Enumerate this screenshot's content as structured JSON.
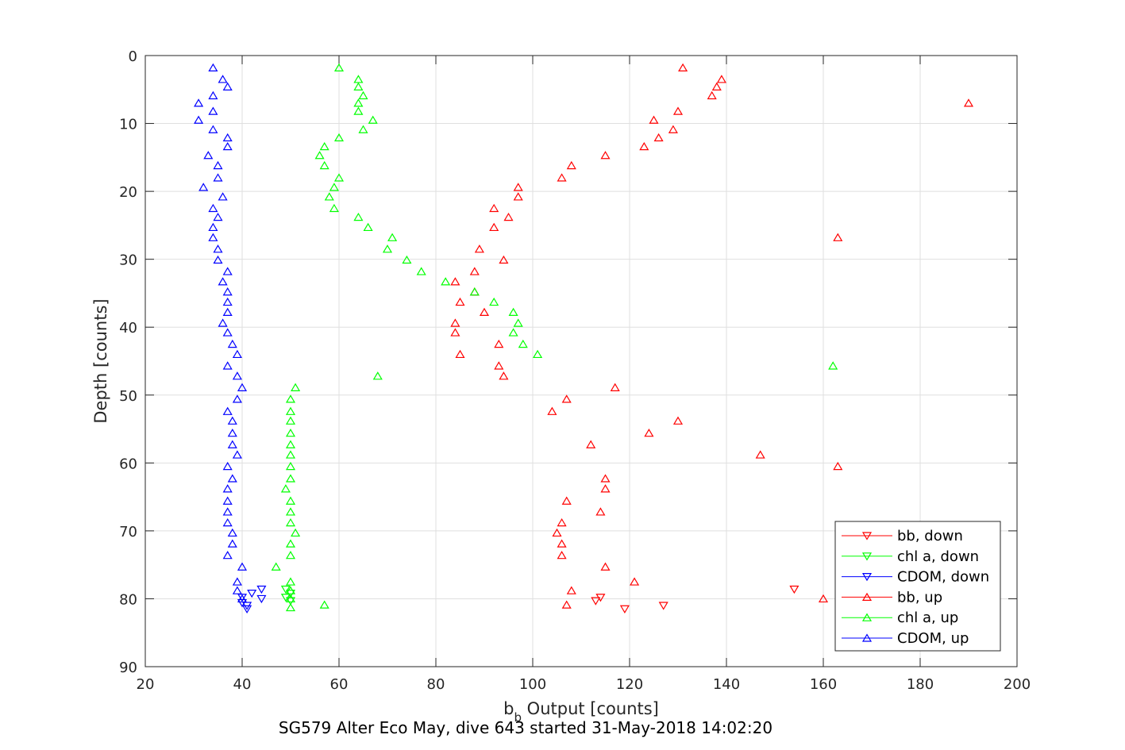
{
  "chart_data": {
    "type": "scatter",
    "xlabel_main": "b",
    "xlabel_sub": "b",
    "xlabel_rest": " Output [counts]",
    "ylabel": "Depth [counts]",
    "caption": "SG579 Alter Eco May, dive 643 started 31-May-2018 14:02:20",
    "xlim": [
      20,
      200
    ],
    "ylim": [
      0,
      90
    ],
    "y_reversed": true,
    "grid": true,
    "legend_position": "bottom-right",
    "x_ticks": [
      20,
      40,
      60,
      80,
      100,
      120,
      140,
      160,
      180,
      200
    ],
    "y_ticks": [
      0,
      10,
      20,
      30,
      40,
      50,
      60,
      70,
      80,
      90
    ],
    "series": [
      {
        "name": "bb, down",
        "color": "#ff0000",
        "marker": "triangle-down",
        "points": [
          [
            154,
            78.6
          ],
          [
            114,
            79.8
          ],
          [
            113,
            80.3
          ],
          [
            119,
            81.5
          ],
          [
            127,
            81
          ]
        ]
      },
      {
        "name": "chl a, down",
        "color": "#00ff00",
        "marker": "triangle-down",
        "points": [
          [
            49,
            78.6
          ],
          [
            50,
            79.2
          ],
          [
            49,
            79.8
          ],
          [
            50,
            80.3
          ]
        ]
      },
      {
        "name": "CDOM, down",
        "color": "#0000ff",
        "marker": "triangle-down",
        "points": [
          [
            44,
            78.6
          ],
          [
            42,
            79.2
          ],
          [
            40,
            79.8
          ],
          [
            44,
            80
          ],
          [
            40,
            80.6
          ],
          [
            41,
            81
          ],
          [
            41,
            81.5
          ]
        ]
      },
      {
        "name": "bb, up",
        "color": "#ff0000",
        "marker": "triangle-up",
        "points": [
          [
            131,
            1.8
          ],
          [
            139,
            3.5
          ],
          [
            138,
            4.6
          ],
          [
            137,
            5.9
          ],
          [
            190,
            7
          ],
          [
            130,
            8.2
          ],
          [
            125,
            9.5
          ],
          [
            129,
            10.9
          ],
          [
            126,
            12.1
          ],
          [
            123,
            13.4
          ],
          [
            115,
            14.7
          ],
          [
            108,
            16.2
          ],
          [
            106,
            18
          ],
          [
            97,
            19.4
          ],
          [
            97,
            20.8
          ],
          [
            92,
            22.5
          ],
          [
            95,
            23.8
          ],
          [
            92,
            25.3
          ],
          [
            163,
            26.8
          ],
          [
            89,
            28.5
          ],
          [
            94,
            30.1
          ],
          [
            88,
            31.8
          ],
          [
            84,
            33.3
          ],
          [
            88,
            34.8
          ],
          [
            85,
            36.3
          ],
          [
            90,
            37.8
          ],
          [
            84,
            39.4
          ],
          [
            84,
            40.8
          ],
          [
            93,
            42.5
          ],
          [
            85,
            44
          ],
          [
            93,
            45.7
          ],
          [
            94,
            47.2
          ],
          [
            117,
            48.9
          ],
          [
            107,
            50.6
          ],
          [
            104,
            52.4
          ],
          [
            130,
            53.8
          ],
          [
            124,
            55.6
          ],
          [
            112,
            57.3
          ],
          [
            147,
            58.8
          ],
          [
            163,
            60.5
          ],
          [
            115,
            62.3
          ],
          [
            115,
            63.8
          ],
          [
            107,
            65.6
          ],
          [
            114,
            67.2
          ],
          [
            106,
            68.8
          ],
          [
            105,
            70.3
          ],
          [
            106,
            71.9
          ],
          [
            106,
            73.6
          ],
          [
            115,
            75.3
          ],
          [
            121,
            77.5
          ],
          [
            108,
            78.8
          ],
          [
            160,
            80
          ],
          [
            107,
            80.9
          ]
        ]
      },
      {
        "name": "chl a, up",
        "color": "#00ff00",
        "marker": "triangle-up",
        "points": [
          [
            60,
            1.8
          ],
          [
            64,
            3.5
          ],
          [
            64,
            4.6
          ],
          [
            65,
            5.9
          ],
          [
            64,
            7
          ],
          [
            64,
            8.2
          ],
          [
            67,
            9.5
          ],
          [
            65,
            10.9
          ],
          [
            60,
            12.1
          ],
          [
            57,
            13.4
          ],
          [
            56,
            14.7
          ],
          [
            57,
            16.2
          ],
          [
            60,
            18
          ],
          [
            59,
            19.4
          ],
          [
            58,
            20.8
          ],
          [
            59,
            22.5
          ],
          [
            64,
            23.8
          ],
          [
            66,
            25.3
          ],
          [
            71,
            26.8
          ],
          [
            70,
            28.5
          ],
          [
            74,
            30.1
          ],
          [
            77,
            31.8
          ],
          [
            82,
            33.3
          ],
          [
            88,
            34.8
          ],
          [
            92,
            36.3
          ],
          [
            96,
            37.8
          ],
          [
            97,
            39.4
          ],
          [
            96,
            40.8
          ],
          [
            98,
            42.5
          ],
          [
            101,
            44
          ],
          [
            162,
            45.7
          ],
          [
            68,
            47.2
          ],
          [
            51,
            48.9
          ],
          [
            50,
            50.6
          ],
          [
            50,
            52.4
          ],
          [
            50,
            53.8
          ],
          [
            50,
            55.6
          ],
          [
            50,
            57.3
          ],
          [
            50,
            58.8
          ],
          [
            50,
            60.5
          ],
          [
            50,
            62.3
          ],
          [
            49,
            63.8
          ],
          [
            50,
            65.6
          ],
          [
            50,
            67.2
          ],
          [
            50,
            68.8
          ],
          [
            51,
            70.3
          ],
          [
            50,
            71.9
          ],
          [
            50,
            73.6
          ],
          [
            47,
            75.3
          ],
          [
            50,
            77.5
          ],
          [
            50,
            78.8
          ],
          [
            50,
            80
          ],
          [
            57,
            80.9
          ],
          [
            50,
            81.3
          ]
        ]
      },
      {
        "name": "CDOM, up",
        "color": "#0000ff",
        "marker": "triangle-up",
        "points": [
          [
            34,
            1.8
          ],
          [
            36,
            3.5
          ],
          [
            37,
            4.6
          ],
          [
            34,
            5.9
          ],
          [
            31,
            7
          ],
          [
            34,
            8.2
          ],
          [
            31,
            9.5
          ],
          [
            34,
            10.9
          ],
          [
            37,
            12.1
          ],
          [
            37,
            13.4
          ],
          [
            33,
            14.7
          ],
          [
            35,
            16.2
          ],
          [
            35,
            18
          ],
          [
            32,
            19.4
          ],
          [
            36,
            20.8
          ],
          [
            34,
            22.5
          ],
          [
            35,
            23.8
          ],
          [
            34,
            25.3
          ],
          [
            34,
            26.8
          ],
          [
            35,
            28.5
          ],
          [
            35,
            30.1
          ],
          [
            37,
            31.8
          ],
          [
            36,
            33.3
          ],
          [
            37,
            34.8
          ],
          [
            37,
            36.3
          ],
          [
            37,
            37.8
          ],
          [
            36,
            39.4
          ],
          [
            37,
            40.8
          ],
          [
            38,
            42.5
          ],
          [
            39,
            44
          ],
          [
            37,
            45.7
          ],
          [
            39,
            47.2
          ],
          [
            40,
            48.9
          ],
          [
            39,
            50.6
          ],
          [
            37,
            52.4
          ],
          [
            38,
            53.8
          ],
          [
            38,
            55.6
          ],
          [
            38,
            57.3
          ],
          [
            39,
            58.8
          ],
          [
            37,
            60.5
          ],
          [
            38,
            62.3
          ],
          [
            37,
            63.8
          ],
          [
            37,
            65.6
          ],
          [
            37,
            67.2
          ],
          [
            37,
            68.8
          ],
          [
            38,
            70.3
          ],
          [
            38,
            71.9
          ],
          [
            37,
            73.6
          ],
          [
            40,
            75.3
          ],
          [
            39,
            77.5
          ],
          [
            39,
            78.8
          ],
          [
            40,
            80
          ]
        ]
      }
    ]
  }
}
